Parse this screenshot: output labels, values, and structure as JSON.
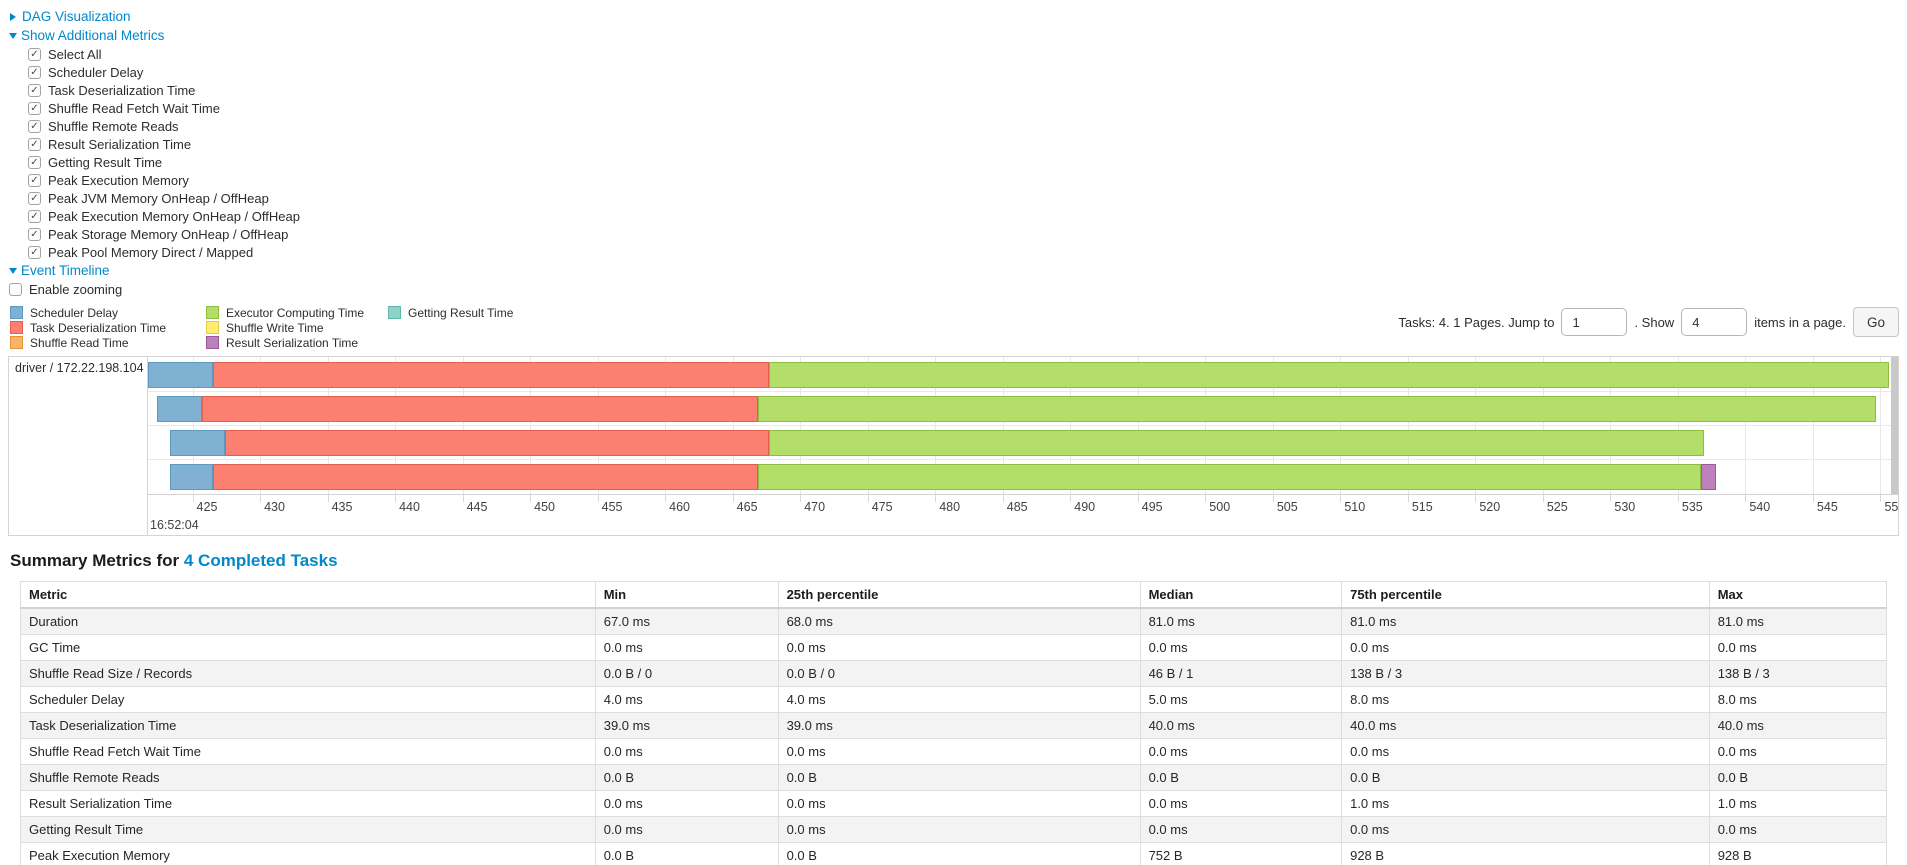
{
  "controls": {
    "dag": {
      "label": "DAG Visualization",
      "expanded": false
    },
    "metrics_toggle": {
      "label": "Show Additional Metrics",
      "expanded": true
    },
    "metrics_checkboxes": [
      {
        "label": "Select All",
        "checked": true
      },
      {
        "label": "Scheduler Delay",
        "checked": true
      },
      {
        "label": "Task Deserialization Time",
        "checked": true
      },
      {
        "label": "Shuffle Read Fetch Wait Time",
        "checked": true
      },
      {
        "label": "Shuffle Remote Reads",
        "checked": true
      },
      {
        "label": "Result Serialization Time",
        "checked": true
      },
      {
        "label": "Getting Result Time",
        "checked": true
      },
      {
        "label": "Peak Execution Memory",
        "checked": true
      },
      {
        "label": "Peak JVM Memory OnHeap / OffHeap",
        "checked": true
      },
      {
        "label": "Peak Execution Memory OnHeap / OffHeap",
        "checked": true
      },
      {
        "label": "Peak Storage Memory OnHeap / OffHeap",
        "checked": true
      },
      {
        "label": "Peak Pool Memory Direct / Mapped",
        "checked": true
      }
    ],
    "event_timeline_toggle": {
      "label": "Event Timeline",
      "expanded": true
    },
    "enable_zooming": {
      "label": "Enable zooming",
      "checked": false
    }
  },
  "legend": {
    "items": [
      {
        "key": "scheduler_delay",
        "label": "Scheduler Delay",
        "color": "#80B1D3",
        "border": "#5E99C0"
      },
      {
        "key": "task_deserialization",
        "label": "Task Deserialization Time",
        "color": "#FB8072",
        "border": "#E35E4F"
      },
      {
        "key": "shuffle_read",
        "label": "Shuffle Read Time",
        "color": "#FDB462",
        "border": "#E2923B"
      },
      {
        "key": "executor_computing",
        "label": "Executor Computing Time",
        "color": "#B3DE69",
        "border": "#8CBE3F"
      },
      {
        "key": "shuffle_write",
        "label": "Shuffle Write Time",
        "color": "#FFED6F",
        "border": "#E0CC44"
      },
      {
        "key": "result_serialization",
        "label": "Result Serialization Time",
        "color": "#BC80BD",
        "border": "#9A5B9B"
      },
      {
        "key": "getting_result",
        "label": "Getting Result Time",
        "color": "#8DD3C7",
        "border": "#5FB8A8"
      }
    ]
  },
  "pagination": {
    "tasks_text": "Tasks: 4. 1 Pages. Jump to",
    "jump_value": "1",
    "show_text": ". Show",
    "show_value": "4",
    "suffix_text": "items in a page.",
    "go_label": "Go"
  },
  "timeline": {
    "group_label": "driver / 172.22.198.104",
    "axis": {
      "domain_start_ms": 421.7,
      "domain_end_ms": 551.3,
      "tick_step_ms": 5,
      "ticks": [
        425,
        430,
        435,
        440,
        445,
        450,
        455,
        460,
        465,
        470,
        475,
        480,
        485,
        490,
        495,
        500,
        505,
        510,
        515,
        520,
        525,
        530,
        535,
        540,
        545,
        550
      ],
      "major_label": "16:52:04"
    },
    "tasks": [
      {
        "segments": [
          {
            "type": "scheduler_delay",
            "start_ms": 421.7,
            "end_ms": 426.5
          },
          {
            "type": "task_deserialization",
            "start_ms": 426.5,
            "end_ms": 467.7
          },
          {
            "type": "executor_computing",
            "start_ms": 467.7,
            "end_ms": 550.6
          }
        ]
      },
      {
        "segments": [
          {
            "type": "scheduler_delay",
            "start_ms": 422.4,
            "end_ms": 425.7
          },
          {
            "type": "task_deserialization",
            "start_ms": 425.7,
            "end_ms": 466.9
          },
          {
            "type": "executor_computing",
            "start_ms": 466.9,
            "end_ms": 549.7
          }
        ]
      },
      {
        "segments": [
          {
            "type": "scheduler_delay",
            "start_ms": 423.3,
            "end_ms": 427.4
          },
          {
            "type": "task_deserialization",
            "start_ms": 427.4,
            "end_ms": 467.7
          },
          {
            "type": "executor_computing",
            "start_ms": 467.7,
            "end_ms": 536.9
          }
        ]
      },
      {
        "segments": [
          {
            "type": "scheduler_delay",
            "start_ms": 423.3,
            "end_ms": 426.5
          },
          {
            "type": "task_deserialization",
            "start_ms": 426.5,
            "end_ms": 466.9
          },
          {
            "type": "executor_computing",
            "start_ms": 466.9,
            "end_ms": 536.7
          },
          {
            "type": "result_serialization",
            "start_ms": 536.7,
            "end_ms": 537.8
          }
        ]
      }
    ]
  },
  "summary": {
    "title_prefix": "Summary Metrics for",
    "title_link": "4 Completed Tasks"
  },
  "table": {
    "headers": [
      "Metric",
      "Min",
      "25th percentile",
      "Median",
      "75th percentile",
      "Max"
    ],
    "rows": [
      {
        "metric": "Duration",
        "values": [
          "67.0 ms",
          "68.0 ms",
          "81.0 ms",
          "81.0 ms",
          "81.0 ms"
        ]
      },
      {
        "metric": "GC Time",
        "values": [
          "0.0 ms",
          "0.0 ms",
          "0.0 ms",
          "0.0 ms",
          "0.0 ms"
        ]
      },
      {
        "metric": "Shuffle Read Size / Records",
        "values": [
          "0.0 B / 0",
          "0.0 B / 0",
          "46 B / 1",
          "138 B / 3",
          "138 B / 3"
        ]
      },
      {
        "metric": "Scheduler Delay",
        "values": [
          "4.0 ms",
          "4.0 ms",
          "5.0 ms",
          "8.0 ms",
          "8.0 ms"
        ]
      },
      {
        "metric": "Task Deserialization Time",
        "values": [
          "39.0 ms",
          "39.0 ms",
          "40.0 ms",
          "40.0 ms",
          "40.0 ms"
        ]
      },
      {
        "metric": "Shuffle Read Fetch Wait Time",
        "values": [
          "0.0 ms",
          "0.0 ms",
          "0.0 ms",
          "0.0 ms",
          "0.0 ms"
        ]
      },
      {
        "metric": "Shuffle Remote Reads",
        "values": [
          "0.0 B",
          "0.0 B",
          "0.0 B",
          "0.0 B",
          "0.0 B"
        ]
      },
      {
        "metric": "Result Serialization Time",
        "values": [
          "0.0 ms",
          "0.0 ms",
          "0.0 ms",
          "1.0 ms",
          "1.0 ms"
        ]
      },
      {
        "metric": "Getting Result Time",
        "values": [
          "0.0 ms",
          "0.0 ms",
          "0.0 ms",
          "0.0 ms",
          "0.0 ms"
        ]
      },
      {
        "metric": "Peak Execution Memory",
        "values": [
          "0.0 B",
          "0.0 B",
          "752 B",
          "928 B",
          "928 B"
        ]
      }
    ],
    "partial_row_metric": "Peak JVM Memory OnHeap / OffHeap",
    "partial_row_values": [
      "",
      "",
      "",
      "",
      ""
    ]
  }
}
